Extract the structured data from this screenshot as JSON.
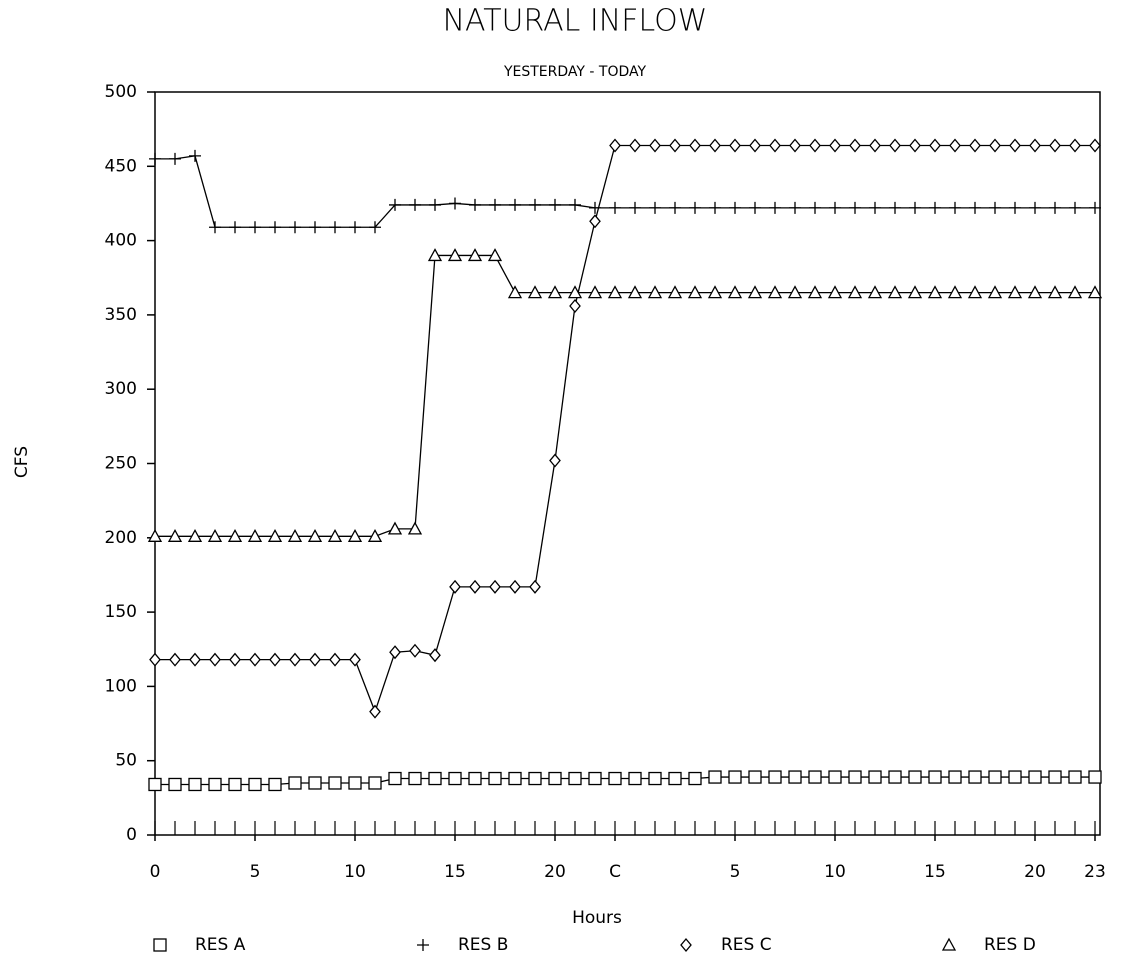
{
  "chart_data": {
    "type": "line",
    "title": "NATURAL INFLOW",
    "subtitle": "YESTERDAY - TODAY",
    "xlabel": "Hours",
    "ylabel": "CFS",
    "x": [
      0,
      1,
      2,
      3,
      4,
      5,
      6,
      7,
      8,
      9,
      10,
      11,
      12,
      13,
      14,
      15,
      16,
      17,
      18,
      19,
      20,
      21,
      22,
      23,
      24,
      25,
      26,
      27,
      28,
      29,
      30,
      31,
      32,
      33,
      34,
      35,
      36,
      37,
      38,
      39,
      40,
      41,
      42,
      43,
      44,
      45,
      46,
      47
    ],
    "xlim": [
      0,
      47
    ],
    "xticks": [
      0,
      5,
      10,
      15,
      20,
      {
        "value": 23,
        "label": "C"
      },
      {
        "value": 29,
        "label": "5"
      },
      {
        "value": 34,
        "label": "10"
      },
      {
        "value": 39,
        "label": "15"
      },
      {
        "value": 44,
        "label": "20"
      },
      {
        "value": 47,
        "label": "23"
      }
    ],
    "ylim": [
      0,
      500
    ],
    "yticks": [
      0,
      50,
      100,
      150,
      200,
      250,
      300,
      350,
      400,
      450,
      500
    ],
    "grid": false,
    "legend": "bottom",
    "series": [
      {
        "name": "RES A",
        "color": "#000000",
        "marker": "square",
        "values": [
          34,
          34,
          34,
          34,
          34,
          34,
          34,
          35,
          35,
          35,
          35,
          35,
          38,
          38,
          38,
          38,
          38,
          38,
          38,
          38,
          38,
          38,
          38,
          38,
          38,
          38,
          38,
          38,
          39,
          39,
          39,
          39,
          39,
          39,
          39,
          39,
          39,
          39,
          39,
          39,
          39,
          39,
          39,
          39,
          39,
          39,
          39,
          39
        ]
      },
      {
        "name": "RES B",
        "color": "#000000",
        "marker": "plus",
        "values": [
          455,
          455,
          457,
          409,
          409,
          409,
          409,
          409,
          409,
          409,
          409,
          409,
          424,
          424,
          424,
          425,
          424,
          424,
          424,
          424,
          424,
          424,
          422,
          422,
          422,
          422,
          422,
          422,
          422,
          422,
          422,
          422,
          422,
          422,
          422,
          422,
          422,
          422,
          422,
          422,
          422,
          422,
          422,
          422,
          422,
          422,
          422,
          422
        ]
      },
      {
        "name": "RES C",
        "color": "#000000",
        "marker": "diamond",
        "values": [
          118,
          118,
          118,
          118,
          118,
          118,
          118,
          118,
          118,
          118,
          118,
          83,
          123,
          124,
          121,
          167,
          167,
          167,
          167,
          167,
          252,
          356,
          413,
          464,
          464,
          464,
          464,
          464,
          464,
          464,
          464,
          464,
          464,
          464,
          464,
          464,
          464,
          464,
          464,
          464,
          464,
          464,
          464,
          464,
          464,
          464,
          464,
          464
        ]
      },
      {
        "name": "RES D",
        "color": "#000000",
        "marker": "triangle",
        "values": [
          201,
          201,
          201,
          201,
          201,
          201,
          201,
          201,
          201,
          201,
          201,
          201,
          206,
          206,
          390,
          390,
          390,
          390,
          365,
          365,
          365,
          365,
          365,
          365,
          365,
          365,
          365,
          365,
          365,
          365,
          365,
          365,
          365,
          365,
          365,
          365,
          365,
          365,
          365,
          365,
          365,
          365,
          365,
          365,
          365,
          365,
          365,
          365
        ]
      }
    ]
  }
}
